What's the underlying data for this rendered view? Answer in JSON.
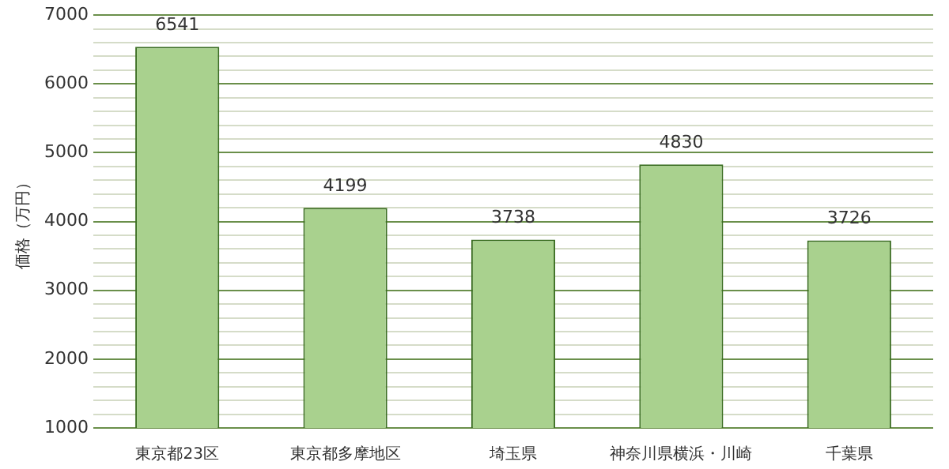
{
  "chart_data": {
    "type": "bar",
    "ylabel": "価格（万円）",
    "categories": [
      "東京都23区",
      "東京都多摩地区",
      "埼玉県",
      "神奈川県横浜・川崎",
      "千葉県"
    ],
    "values": [
      6541,
      4199,
      3738,
      4830,
      3726
    ],
    "color": "#a9d18e",
    "ylim": [
      1000,
      7000
    ],
    "yticks": [
      1000,
      {
        "value": 1200,
        "label": null
      },
      {
        "value": 1400,
        "label": null
      },
      {
        "value": 1600,
        "label": null
      },
      {
        "value": 1800,
        "label": null
      },
      2000,
      {
        "value": 2200,
        "label": null
      },
      {
        "value": 2400,
        "label": null
      },
      {
        "value": 2600,
        "label": null
      },
      {
        "value": 2800,
        "label": null
      },
      3000,
      {
        "value": 3200,
        "label": null
      },
      {
        "value": 3400,
        "label": null
      },
      {
        "value": 3600,
        "label": null
      },
      {
        "value": 3800,
        "label": null
      },
      4000,
      {
        "value": 4200,
        "label": null
      },
      {
        "value": 4400,
        "label": null
      },
      {
        "value": 4600,
        "label": null
      },
      {
        "value": 4800,
        "label": null
      },
      5000,
      {
        "value": 5200,
        "label": null
      },
      {
        "value": 5400,
        "label": null
      },
      {
        "value": 5600,
        "label": null
      },
      {
        "value": 5800,
        "label": null
      },
      6000,
      {
        "value": 6200,
        "label": null
      },
      {
        "value": 6400,
        "label": null
      },
      {
        "value": 6600,
        "label": null
      },
      {
        "value": 6800,
        "label": null
      },
      7000
    ],
    "grid": "y",
    "data_labels": true
  }
}
